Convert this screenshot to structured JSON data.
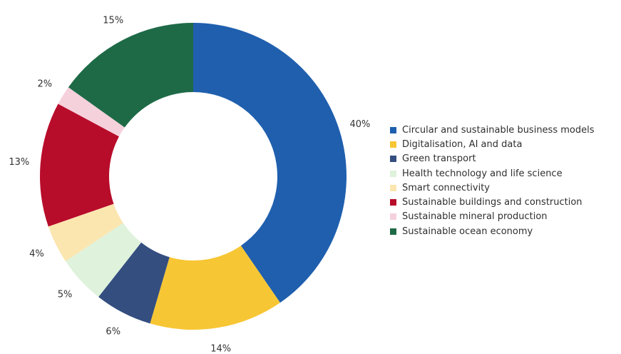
{
  "chart_data": {
    "type": "pie",
    "donut": true,
    "title": "",
    "legend_position": "right",
    "slices": [
      {
        "label": "Circular and sustainable business models",
        "value": 40,
        "value_label": "40%",
        "color": "#1f5fae"
      },
      {
        "label": "Digitalisation, AI and data",
        "value": 14,
        "value_label": "14%",
        "color": "#f7c634"
      },
      {
        "label": "Green transport",
        "value": 6,
        "value_label": "6%",
        "color": "#344e80"
      },
      {
        "label": "Health technology and life science",
        "value": 5,
        "value_label": "5%",
        "color": "#dff2dc"
      },
      {
        "label": "Smart connectivity",
        "value": 4,
        "value_label": "4%",
        "color": "#fbe6b0"
      },
      {
        "label": "Sustainable buildings and construction",
        "value": 13,
        "value_label": "13%",
        "color": "#b80c2b"
      },
      {
        "label": "Sustainable mineral production",
        "value": 2,
        "value_label": "2%",
        "color": "#f5d1dc"
      },
      {
        "label": "Sustainable ocean economy",
        "value": 15,
        "value_label": "15%",
        "color": "#1e6a47"
      }
    ]
  }
}
